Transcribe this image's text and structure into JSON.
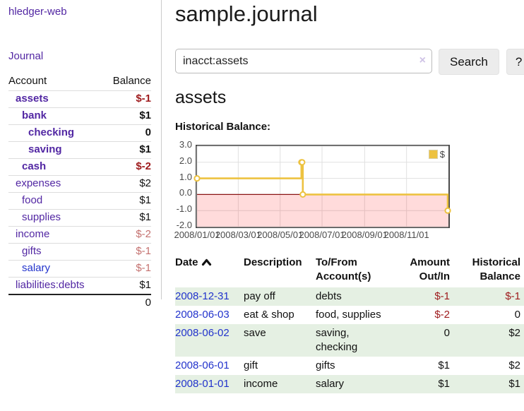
{
  "app": {
    "title": "hledger-web"
  },
  "sidebar": {
    "journal_link": "Journal",
    "accounts": {
      "headers": {
        "account": "Account",
        "balance": "Balance"
      },
      "rows": [
        {
          "name": "assets",
          "depth": 1,
          "bold": true,
          "name_color": "purple",
          "balance": "$-1",
          "balance_color": "neg"
        },
        {
          "name": "bank",
          "depth": 2,
          "bold": true,
          "name_color": "purple",
          "balance": "$1",
          "balance_color": "black"
        },
        {
          "name": "checking",
          "depth": 3,
          "bold": true,
          "name_color": "purple",
          "balance": "0",
          "balance_color": "black"
        },
        {
          "name": "saving",
          "depth": 3,
          "bold": true,
          "name_color": "purple",
          "balance": "$1",
          "balance_color": "black"
        },
        {
          "name": "cash",
          "depth": 2,
          "bold": true,
          "name_color": "purple",
          "balance": "$-2",
          "balance_color": "neg"
        },
        {
          "name": "expenses",
          "depth": 1,
          "bold": false,
          "name_color": "purple",
          "balance": "$2",
          "balance_color": "black"
        },
        {
          "name": "food",
          "depth": 2,
          "bold": false,
          "name_color": "purple",
          "balance": "$1",
          "balance_color": "black"
        },
        {
          "name": "supplies",
          "depth": 2,
          "bold": false,
          "name_color": "purple",
          "balance": "$1",
          "balance_color": "black"
        },
        {
          "name": "income",
          "depth": 1,
          "bold": false,
          "name_color": "purple",
          "balance": "$-2",
          "balance_color": "negweak"
        },
        {
          "name": "gifts",
          "depth": 2,
          "bold": false,
          "name_color": "purple",
          "balance": "$-1",
          "balance_color": "negweak"
        },
        {
          "name": "salary",
          "depth": 2,
          "bold": false,
          "name_color": "blue",
          "balance": "$-1",
          "balance_color": "negweak"
        },
        {
          "name": "liabilities:debts",
          "depth": 1,
          "bold": false,
          "name_color": "purple",
          "balance": "$1",
          "balance_color": "black"
        }
      ],
      "total": "0"
    }
  },
  "main": {
    "title": "sample.journal",
    "search": {
      "value": "inacct:assets",
      "clear_icon": "×",
      "button": "Search",
      "help_button": "?"
    },
    "account_heading": "assets",
    "chart_title": "Historical Balance:"
  },
  "chart_data": {
    "type": "line",
    "title": "Historical Balance:",
    "series": [
      {
        "name": "$",
        "step": true,
        "points": [
          [
            "2008/01/01",
            1
          ],
          [
            "2008/06/01",
            2
          ],
          [
            "2008/06/02",
            2
          ],
          [
            "2008/06/03",
            0
          ],
          [
            "2008/12/31",
            -1
          ]
        ]
      }
    ],
    "x_range": [
      "2008/01/01",
      "2009/01/01"
    ],
    "y_range": [
      -2,
      3
    ],
    "x_ticks": [
      "2008/01/01",
      "2008/03/01",
      "2008/05/01",
      "2008/07/01",
      "2008/09/01",
      "2008/11/01"
    ],
    "y_ticks": [
      3.0,
      2.0,
      1.0,
      0.0,
      -1.0,
      -2.0
    ],
    "legend": {
      "label": "$",
      "position": "top-right"
    },
    "grid": true,
    "negative_region_below": 0,
    "colors": {
      "line": "#EDC240",
      "marker_fill": "#ffffff",
      "grid": "#e0e0e0",
      "negative_fill": "rgba(255,0,0,0.14)",
      "zero_line": "#8B1515",
      "border": "#4a4a4a"
    }
  },
  "register": {
    "headers": {
      "date": "Date",
      "description": "Description",
      "accounts": "To/From\nAccount(s)",
      "amount": "Amount\nOut/In",
      "balance": "Historical\nBalance"
    },
    "rows": [
      {
        "date": "2008-12-31",
        "description": "pay off",
        "accounts": "debts",
        "amount": "$-1",
        "amount_color": "neg",
        "balance": "$-1",
        "balance_color": "neg",
        "shaded": true
      },
      {
        "date": "2008-06-03",
        "description": "eat & shop",
        "accounts": "food, supplies",
        "amount": "$-2",
        "amount_color": "neg",
        "balance": "0",
        "balance_color": "black",
        "shaded": false
      },
      {
        "date": "2008-06-02",
        "description": "save",
        "accounts": "saving,\nchecking",
        "amount": "0",
        "amount_color": "black",
        "balance": "$2",
        "balance_color": "black",
        "shaded": true
      },
      {
        "date": "2008-06-01",
        "description": "gift",
        "accounts": "gifts",
        "amount": "$1",
        "amount_color": "black",
        "balance": "$2",
        "balance_color": "black",
        "shaded": false
      },
      {
        "date": "2008-01-01",
        "description": "income",
        "accounts": "salary",
        "amount": "$1",
        "amount_color": "black",
        "balance": "$1",
        "balance_color": "black",
        "shaded": true
      }
    ]
  },
  "colors": {
    "link_purple": "#5227A3",
    "link_blue": "#2233CC",
    "negative_strong": "#9E1A1C",
    "negative_weak": "#C4716F",
    "row_shade_green": "#E5F0E3",
    "chart_line_gold": "#EDC240"
  }
}
